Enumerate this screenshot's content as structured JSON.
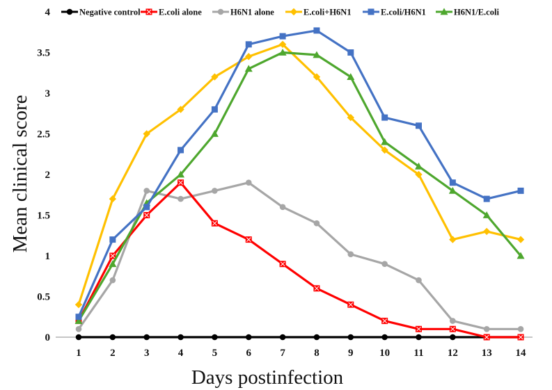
{
  "chart_data": {
    "type": "line",
    "x": [
      1,
      2,
      3,
      4,
      5,
      6,
      7,
      8,
      9,
      10,
      11,
      12,
      13,
      14
    ],
    "xlabel": "Days postinfection",
    "ylabel": "Mean clinical score",
    "ylim": [
      0,
      4
    ],
    "yticks": [
      "0",
      "0.5",
      "1",
      "1.5",
      "2",
      "2.5",
      "3",
      "3.5",
      "4"
    ],
    "grid": false,
    "legend_position": "top",
    "series": [
      {
        "name": "Negative control",
        "color": "#000000",
        "marker": "circle",
        "values": [
          0,
          0,
          0,
          0,
          0,
          0,
          0,
          0,
          0,
          0,
          0,
          0,
          0,
          0
        ]
      },
      {
        "name": "E.coli alone",
        "color": "#ff0000",
        "marker": "square-x",
        "values": [
          0.2,
          1.0,
          1.5,
          1.9,
          1.4,
          1.2,
          0.9,
          0.6,
          0.4,
          0.2,
          0.1,
          0.1,
          0,
          0
        ]
      },
      {
        "name": "H6N1 alone",
        "color": "#a6a6a6",
        "marker": "circle",
        "values": [
          0.1,
          0.7,
          1.8,
          1.7,
          1.8,
          1.9,
          1.6,
          1.4,
          1.02,
          0.9,
          0.7,
          0.2,
          0.1,
          0.1
        ]
      },
      {
        "name": "E.coli+H6N1",
        "color": "#ffc000",
        "marker": "diamond",
        "values": [
          0.4,
          1.7,
          2.5,
          2.8,
          3.2,
          3.45,
          3.6,
          3.2,
          2.7,
          2.3,
          2.0,
          1.2,
          1.3,
          1.2
        ]
      },
      {
        "name": "E.coli/H6N1",
        "color": "#4472c4",
        "marker": "square",
        "values": [
          0.25,
          1.2,
          1.6,
          2.3,
          2.8,
          3.6,
          3.7,
          3.77,
          3.5,
          2.7,
          2.6,
          1.9,
          1.7,
          1.8
        ]
      },
      {
        "name": "H6N1/E.coli",
        "color": "#4ea72e",
        "marker": "triangle",
        "values": [
          0.2,
          0.9,
          1.65,
          2.0,
          2.5,
          3.3,
          3.5,
          3.47,
          3.2,
          2.4,
          2.1,
          1.8,
          1.5,
          1.0
        ]
      }
    ]
  }
}
